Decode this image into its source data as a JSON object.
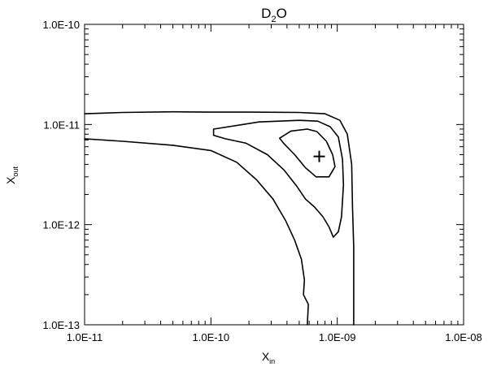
{
  "chart_data": {
    "type": "contour",
    "title": {
      "main": "D",
      "sub": "2",
      "rest": "O"
    },
    "xlabel": {
      "main": "X",
      "sub": "in"
    },
    "ylabel": {
      "main": "X",
      "sub": "out"
    },
    "x_scale": "log",
    "y_scale": "log",
    "xlim": [
      1e-11,
      1e-08
    ],
    "ylim": [
      1e-13,
      1e-10
    ],
    "x_ticks": [
      {
        "value": 1e-11,
        "label": "1.0E-11"
      },
      {
        "value": 1e-10,
        "label": "1.0E-10"
      },
      {
        "value": 1e-09,
        "label": "1.0E-09"
      },
      {
        "value": 1e-08,
        "label": "1.0E-08"
      }
    ],
    "y_ticks": [
      {
        "value": 1e-13,
        "label": "1.0E-13"
      },
      {
        "value": 1e-12,
        "label": "1.0E-12"
      },
      {
        "value": 1e-11,
        "label": "1.0E-11"
      },
      {
        "value": 1e-10,
        "label": "1.0E-10"
      }
    ],
    "best_fit": {
      "x": 7.2e-10,
      "y": 4.8e-12
    },
    "contours": [
      {
        "points": [
          [
            1e-11,
            1.28e-11
          ],
          [
            2e-11,
            1.32e-11
          ],
          [
            5e-11,
            1.34e-11
          ],
          [
            1e-10,
            1.33e-11
          ],
          [
            2e-10,
            1.33e-11
          ],
          [
            5e-10,
            1.32e-11
          ],
          [
            8e-10,
            1.28e-11
          ],
          [
            1.05e-09,
            1.1e-11
          ],
          [
            1.2e-09,
            8e-12
          ],
          [
            1.3e-09,
            4e-12
          ],
          [
            1.32e-09,
            1.5e-12
          ],
          [
            1.35e-09,
            6e-13
          ],
          [
            1.35e-09,
            1e-13
          ]
        ]
      },
      {
        "points": [
          [
            1e-11,
            7.2e-12
          ],
          [
            2e-11,
            6.8e-12
          ],
          [
            5e-11,
            6.2e-12
          ],
          [
            1e-10,
            5.5e-12
          ],
          [
            1.6e-10,
            4.2e-12
          ],
          [
            2.3e-10,
            2.8e-12
          ],
          [
            3.1e-10,
            1.8e-12
          ],
          [
            3.9e-10,
            1.1e-12
          ],
          [
            4.6e-10,
            7e-13
          ],
          [
            5.2e-10,
            4.5e-13
          ],
          [
            5.5e-10,
            2.8e-13
          ],
          [
            5.4e-10,
            2e-13
          ],
          [
            5.9e-10,
            1.6e-13
          ],
          [
            5.8e-10,
            1e-13
          ]
        ]
      },
      {
        "closed": true,
        "points": [
          [
            1.05e-10,
            9e-12
          ],
          [
            2.4e-10,
            1.06e-11
          ],
          [
            5e-10,
            1.1e-11
          ],
          [
            7e-10,
            1.08e-11
          ],
          [
            8.8e-10,
            9.5e-12
          ],
          [
            1.02e-09,
            7.5e-12
          ],
          [
            1.1e-09,
            4.5e-12
          ],
          [
            1.12e-09,
            2.5e-12
          ],
          [
            1.08e-09,
            1.2e-12
          ],
          [
            1.02e-09,
            8.5e-13
          ],
          [
            9.3e-10,
            7.5e-13
          ],
          [
            8.6e-10,
            9.5e-13
          ],
          [
            7.7e-10,
            1.2e-12
          ],
          [
            6.6e-10,
            1.5e-12
          ],
          [
            5.6e-10,
            1.8e-12
          ],
          [
            4.8e-10,
            2.4e-12
          ],
          [
            3.8e-10,
            3.5e-12
          ],
          [
            2.8e-10,
            5e-12
          ],
          [
            1.9e-10,
            6.5e-12
          ],
          [
            1.3e-10,
            7.2e-12
          ],
          [
            1.05e-10,
            7.8e-12
          ]
        ]
      },
      {
        "closed": true,
        "points": [
          [
            3.5e-10,
            7.3e-12
          ],
          [
            4.3e-10,
            8.6e-12
          ],
          [
            5.8e-10,
            9e-12
          ],
          [
            6.9e-10,
            8.5e-12
          ],
          [
            8.2e-10,
            6.8e-12
          ],
          [
            9.2e-10,
            5e-12
          ],
          [
            9.6e-10,
            3.8e-12
          ],
          [
            8.6e-10,
            3e-12
          ],
          [
            6.8e-10,
            3e-12
          ],
          [
            5.6e-10,
            3.7e-12
          ],
          [
            4.6e-10,
            5e-12
          ],
          [
            3.8e-10,
            6.4e-12
          ]
        ]
      }
    ]
  }
}
